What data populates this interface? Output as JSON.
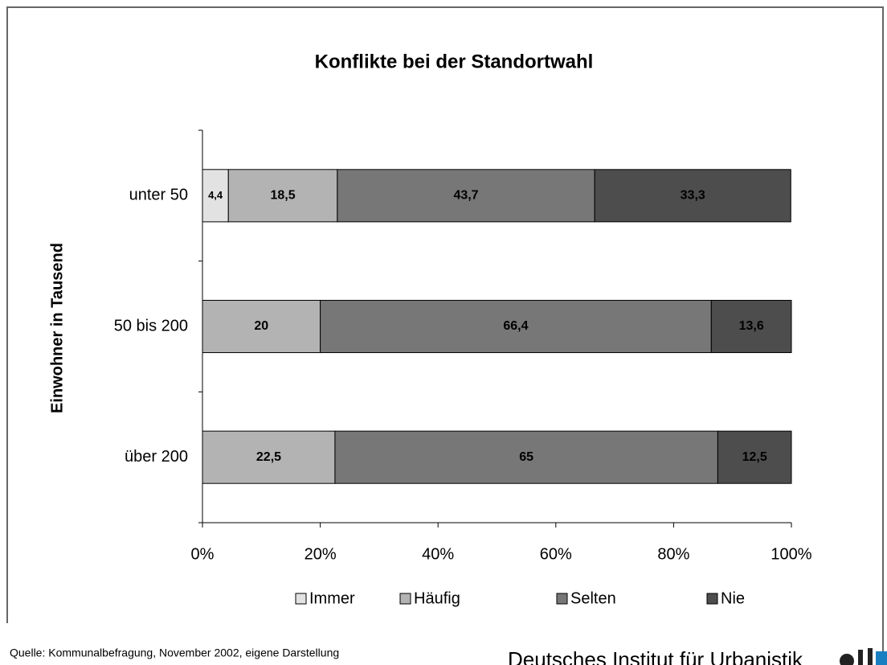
{
  "chart_data": {
    "type": "stacked-barh",
    "title": "Konflikte bei der Standortwahl",
    "ylabel": "Einwohner in Tausend",
    "categories": [
      "unter 50",
      "50 bis 200",
      "über 200"
    ],
    "series": [
      {
        "name": "Immer",
        "color": "#e2e2e2",
        "values": [
          4.4,
          null,
          null
        ],
        "value_labels": [
          "4,4",
          null,
          null
        ]
      },
      {
        "name": "Häufig",
        "color": "#b3b3b3",
        "values": [
          18.5,
          20,
          22.5
        ],
        "value_labels": [
          "18,5",
          "20",
          "22,5"
        ]
      },
      {
        "name": "Selten",
        "color": "#777777",
        "values": [
          43.7,
          66.4,
          65
        ],
        "value_labels": [
          "43,7",
          "66,4",
          "65"
        ]
      },
      {
        "name": "Nie",
        "color": "#4d4d4d",
        "values": [
          33.3,
          13.6,
          12.5
        ],
        "value_labels": [
          "33,3",
          "13,6",
          "12,5"
        ]
      }
    ],
    "xlim": [
      0,
      100
    ],
    "xticks": [
      {
        "value": 0,
        "label": "0%"
      },
      {
        "value": 20,
        "label": "20%"
      },
      {
        "value": 40,
        "label": "40%"
      },
      {
        "value": 60,
        "label": "60%"
      },
      {
        "value": 80,
        "label": "80%"
      },
      {
        "value": 100,
        "label": "100%"
      }
    ],
    "legend": "bottom"
  },
  "source": "Quelle: Kommunalbefragung, November 2002, eigene Darstellung",
  "publisher": "Deutsches Institut für Urbanistik"
}
